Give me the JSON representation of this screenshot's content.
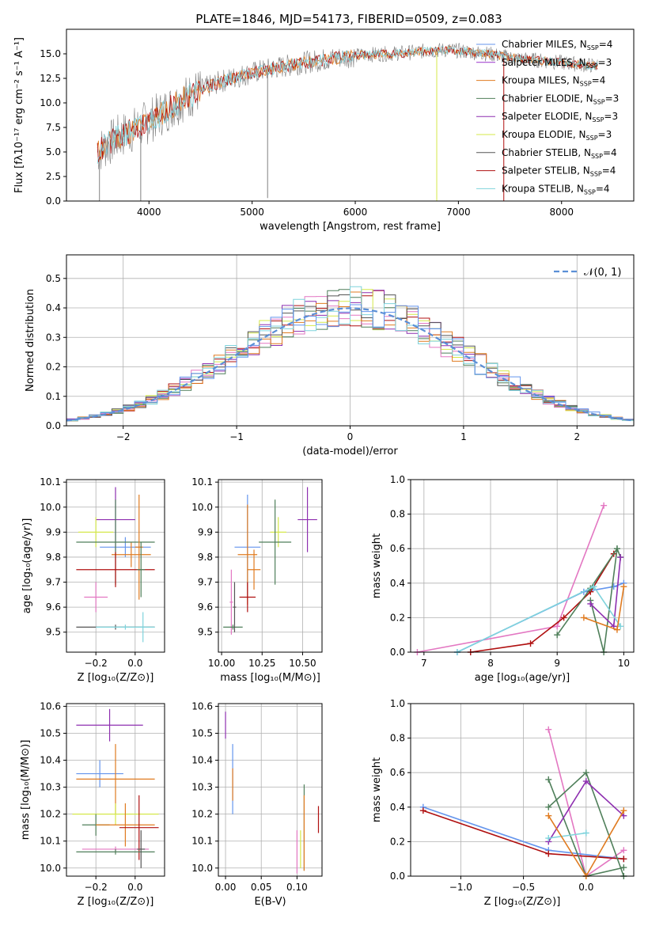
{
  "colors": {
    "chabrier_miles": "#6495ed",
    "salpeter_miles": "#9932cc",
    "kroupa_miles": "#e07b20",
    "chabrier_elodie": "#4f7f5a",
    "salpeter_elodie": "#8e2fb0",
    "kroupa_elodie": "#d4e84a",
    "chabrier_stelib": "#555555",
    "salpeter_stelib": "#b01010",
    "kroupa_stelib": "#7fd3dc",
    "pink": "#e377c2",
    "gauss": "#5b8fd6",
    "spectrum_data": "#808080"
  },
  "chart_data": [
    {
      "id": "spectrum",
      "type": "line",
      "title": "PLATE=1846, MJD=54173, FIBERID=0509, z=0.083",
      "xlabel": "wavelength [Angstrom, rest frame]",
      "ylabel": "Flux [fλ10⁻¹⁷ erg cm⁻² s⁻¹ A⁻¹]",
      "xlim": [
        3200,
        8700
      ],
      "ylim": [
        0,
        17.5
      ],
      "xticks": [
        "4000",
        "5000",
        "6000",
        "7000",
        "8000"
      ],
      "yticks": [
        "0.0",
        "2.5",
        "5.0",
        "7.5",
        "10.0",
        "12.5",
        "15.0"
      ],
      "legend_position": "right",
      "series": [
        {
          "name": "Chabrier MILES, N_SSP=4"
        },
        {
          "name": "Salpeter MILES, N_SSP=3"
        },
        {
          "name": "Kroupa MILES, N_SSP=4"
        },
        {
          "name": "Chabrier ELODIE, N_SSP=3"
        },
        {
          "name": "Salpeter ELODIE, N_SSP=3"
        },
        {
          "name": "Kroupa ELODIE, N_SSP=3"
        },
        {
          "name": "Chabrier STELIB, N_SSP=4"
        },
        {
          "name": "Salpeter STELIB, N_SSP=4"
        },
        {
          "name": "Kroupa STELIB, N_SSP=4"
        }
      ],
      "continuum_x": [
        3500,
        3700,
        3900,
        4100,
        4300,
        4500,
        4700,
        4900,
        5100,
        5300,
        5500,
        5700,
        5900,
        6100,
        6300,
        6500,
        6700,
        6900,
        7100,
        7300,
        7500,
        7700,
        7900,
        8100,
        8300
      ],
      "continuum_y": [
        5.0,
        6.5,
        7.5,
        8.8,
        10.2,
        11.3,
        12.2,
        12.8,
        13.3,
        13.7,
        14.1,
        14.4,
        14.7,
        14.9,
        15.0,
        15.1,
        15.3,
        15.4,
        15.2,
        15.0,
        14.6,
        14.4,
        14.2,
        14.0,
        13.8
      ]
    },
    {
      "id": "residuals",
      "type": "bar",
      "xlabel": "(data-model)/error",
      "ylabel": "Normed distribution",
      "xlim": [
        -2.5,
        2.5
      ],
      "ylim": [
        0,
        0.58
      ],
      "xticks": [
        "−2",
        "−1",
        "0",
        "1",
        "2"
      ],
      "yticks": [
        "0.0",
        "0.1",
        "0.2",
        "0.3",
        "0.4",
        "0.5"
      ],
      "legend_position": "top-right",
      "gauss_label": "𝒩(0, 1)",
      "bin_edges_start": -2.5,
      "bin_width": 0.1,
      "bin_counts": 50
    },
    {
      "id": "age-vs-Z",
      "type": "scatter",
      "xlabel": "Z [log₁₀(Z/Z⊙)]",
      "ylabel": "age  [log₁₀(age/yr)]",
      "xlim": [
        -0.35,
        0.15
      ],
      "ylim": [
        9.42,
        10.11
      ],
      "xticks": [
        "−0.2",
        "0.0"
      ],
      "yticks": [
        "9.5",
        "9.6",
        "9.7",
        "9.8",
        "9.9",
        "10.0",
        "10.1"
      ],
      "points": [
        {
          "x": -0.1,
          "y": 9.95,
          "xerr": 0.1,
          "yerr": 0.13
        },
        {
          "x": -0.05,
          "y": 9.84,
          "xerr": 0.13,
          "yerr": 0.04
        },
        {
          "x": -0.02,
          "y": 9.81,
          "xerr": 0.1,
          "yerr": 0.05
        },
        {
          "x": -0.2,
          "y": 9.9,
          "xerr": 0.09,
          "yerr": 0.06
        },
        {
          "x": -0.1,
          "y": 9.86,
          "xerr": 0.2,
          "yerr": 0.17
        },
        {
          "x": 0.02,
          "y": 9.84,
          "xerr": 0.02,
          "yerr": 0.21
        },
        {
          "x": -0.1,
          "y": 9.75,
          "xerr": 0.2,
          "yerr": 0.07
        },
        {
          "x": -0.2,
          "y": 9.64,
          "xerr": 0.06,
          "yerr": 0.06
        },
        {
          "x": 0.03,
          "y": 9.75,
          "xerr": 0.02,
          "yerr": 0.11
        },
        {
          "x": -0.1,
          "y": 9.52,
          "xerr": 0.2,
          "yerr": 0.01
        },
        {
          "x": -0.05,
          "y": 9.52,
          "xerr": 0.15,
          "yerr": 0.01
        },
        {
          "x": 0.04,
          "y": 9.52,
          "xerr": 0.02,
          "yerr": 0.06
        }
      ]
    },
    {
      "id": "age-vs-mass",
      "type": "scatter",
      "xlabel": "mass [log₁₀(M/M⊙)]",
      "ylabel": "",
      "xlim": [
        9.98,
        10.62
      ],
      "ylim": [
        9.42,
        10.11
      ],
      "xticks": [
        "10.00",
        "10.25",
        "10.50"
      ],
      "yticks": [
        "9.5",
        "9.6",
        "9.7",
        "9.8",
        "9.9",
        "10.0",
        "10.1"
      ],
      "points": [
        {
          "x": 10.53,
          "y": 9.95,
          "xerr": 0.06,
          "yerr": 0.13
        },
        {
          "x": 10.16,
          "y": 9.84,
          "xerr": 0.08,
          "yerr": 0.21
        },
        {
          "x": 10.16,
          "y": 9.81,
          "xerr": 0.06,
          "yerr": 0.2
        },
        {
          "x": 10.35,
          "y": 9.9,
          "xerr": 0.05,
          "yerr": 0.06
        },
        {
          "x": 10.33,
          "y": 9.86,
          "xerr": 0.1,
          "yerr": 0.17
        },
        {
          "x": 10.2,
          "y": 9.75,
          "xerr": 0.04,
          "yerr": 0.08
        },
        {
          "x": 10.16,
          "y": 9.64,
          "xerr": 0.05,
          "yerr": 0.06
        },
        {
          "x": 10.06,
          "y": 9.62,
          "xerr": 0.01,
          "yerr": 0.13
        },
        {
          "x": 10.07,
          "y": 9.52,
          "xerr": 0.06,
          "yerr": 0.01
        },
        {
          "x": 10.08,
          "y": 9.6,
          "xerr": 0.01,
          "yerr": 0.1
        }
      ]
    },
    {
      "id": "massweight-vs-age",
      "type": "line",
      "xlabel": "age  [log₁₀(age/yr)]",
      "ylabel": "mass weight",
      "xlim": [
        6.8,
        10.15
      ],
      "ylim": [
        0,
        1.0
      ],
      "xticks": [
        "7",
        "8",
        "9",
        "10"
      ],
      "yticks": [
        "0.0",
        "0.2",
        "0.4",
        "0.6",
        "0.8",
        "1.0"
      ],
      "series": [
        {
          "x": [
            6.9,
            9.0,
            9.7
          ],
          "y": [
            0.0,
            0.15,
            0.85
          ]
        },
        {
          "x": [
            7.5,
            9.4,
            9.85,
            10.0
          ],
          "y": [
            0.0,
            0.35,
            0.38,
            0.4
          ]
        },
        {
          "x": [
            7.7,
            8.6,
            9.1,
            9.5,
            9.85
          ],
          "y": [
            0.0,
            0.05,
            0.2,
            0.35,
            0.57
          ]
        },
        {
          "x": [
            9.0,
            9.5,
            9.9,
            9.95
          ],
          "y": [
            0.1,
            0.37,
            0.6,
            0.55
          ]
        },
        {
          "x": [
            9.5,
            9.7,
            9.9
          ],
          "y": [
            0.3,
            0.0,
            0.6
          ]
        },
        {
          "x": [
            9.5,
            9.85,
            9.95
          ],
          "y": [
            0.28,
            0.15,
            0.55
          ]
        },
        {
          "x": [
            7.5,
            9.55,
            9.95
          ],
          "y": [
            0.0,
            0.38,
            0.15
          ]
        },
        {
          "x": [
            9.4,
            9.9,
            10.0
          ],
          "y": [
            0.2,
            0.13,
            0.38
          ]
        }
      ]
    },
    {
      "id": "mass-vs-Z",
      "type": "scatter",
      "xlabel": "Z [log₁₀(Z/Z⊙)]",
      "ylabel": "mass [log₁₀(M/M⊙)]",
      "xlim": [
        -0.35,
        0.15
      ],
      "ylim": [
        9.97,
        10.61
      ],
      "xticks": [
        "−0.2",
        "0.0"
      ],
      "yticks": [
        "10.0",
        "10.1",
        "10.2",
        "10.3",
        "10.4",
        "10.5",
        "10.6"
      ],
      "points": [
        {
          "x": -0.13,
          "y": 10.53,
          "xerr": 0.17,
          "yerr": 0.06
        },
        {
          "x": -0.18,
          "y": 10.35,
          "xerr": 0.12,
          "yerr": 0.05
        },
        {
          "x": -0.1,
          "y": 10.33,
          "xerr": 0.2,
          "yerr": 0.13
        },
        {
          "x": -0.1,
          "y": 10.2,
          "xerr": 0.22,
          "yerr": 0.04
        },
        {
          "x": -0.2,
          "y": 10.16,
          "xerr": 0.07,
          "yerr": 0.04
        },
        {
          "x": -0.05,
          "y": 10.16,
          "xerr": 0.15,
          "yerr": 0.08
        },
        {
          "x": 0.02,
          "y": 10.15,
          "xerr": 0.1,
          "yerr": 0.12
        },
        {
          "x": -0.1,
          "y": 10.07,
          "xerr": 0.17,
          "yerr": 0.01
        },
        {
          "x": -0.1,
          "y": 10.06,
          "xerr": 0.2,
          "yerr": 0.01
        },
        {
          "x": 0.03,
          "y": 10.07,
          "xerr": 0.02,
          "yerr": 0.07
        }
      ]
    },
    {
      "id": "mass-vs-EBV",
      "type": "scatter",
      "xlabel": "E(B-V)",
      "ylabel": "",
      "xlim": [
        -0.01,
        0.135
      ],
      "ylim": [
        9.97,
        10.61
      ],
      "xticks": [
        "0.00",
        "0.05",
        "0.10"
      ],
      "yticks": [
        "10.0",
        "10.1",
        "10.2",
        "10.3",
        "10.4",
        "10.5",
        "10.6"
      ],
      "points": [
        {
          "x": 0.0,
          "y": 10.53,
          "xerr": 0.0,
          "yerr": 0.05
        },
        {
          "x": 0.01,
          "y": 10.33,
          "xerr": 0.0,
          "yerr": 0.13
        },
        {
          "x": 0.01,
          "y": 10.31,
          "xerr": 0.0,
          "yerr": 0.06
        },
        {
          "x": 0.105,
          "y": 10.07,
          "xerr": 0.0,
          "yerr": 0.07
        },
        {
          "x": 0.11,
          "y": 10.15,
          "xerr": 0.0,
          "yerr": 0.16
        },
        {
          "x": 0.11,
          "y": 10.13,
          "xerr": 0.0,
          "yerr": 0.14
        },
        {
          "x": 0.13,
          "y": 10.18,
          "xerr": 0.0,
          "yerr": 0.05
        },
        {
          "x": 0.1,
          "y": 10.06,
          "xerr": 0.0,
          "yerr": 0.08
        }
      ]
    },
    {
      "id": "massweight-vs-Z",
      "type": "line",
      "xlabel": "Z [log₁₀(Z/Z⊙)]",
      "ylabel": "mass weight",
      "xlim": [
        -1.4,
        0.38
      ],
      "ylim": [
        0,
        1.0
      ],
      "xticks": [
        "−1.0",
        "−0.5",
        "0.0"
      ],
      "yticks": [
        "0.0",
        "0.2",
        "0.4",
        "0.6",
        "0.8",
        "1.0"
      ],
      "series": [
        {
          "x": [
            -0.3,
            0.0,
            0.3
          ],
          "y": [
            0.85,
            0.0,
            0.15
          ]
        },
        {
          "x": [
            -1.3,
            -0.3,
            0.3
          ],
          "y": [
            0.4,
            0.15,
            0.1
          ]
        },
        {
          "x": [
            -1.3,
            -0.3,
            0.3
          ],
          "y": [
            0.38,
            0.13,
            0.1
          ]
        },
        {
          "x": [
            -0.3,
            0.0,
            0.3
          ],
          "y": [
            0.56,
            0.0,
            0.05
          ]
        },
        {
          "x": [
            -0.3,
            0.0,
            0.3
          ],
          "y": [
            0.4,
            0.6,
            0.0
          ]
        },
        {
          "x": [
            -0.3,
            0.0,
            0.3
          ],
          "y": [
            0.2,
            0.55,
            0.35
          ]
        },
        {
          "x": [
            -0.3,
            0.0
          ],
          "y": [
            0.22,
            0.25
          ]
        },
        {
          "x": [
            -0.3,
            0.0,
            0.3
          ],
          "y": [
            0.35,
            0.0,
            0.38
          ]
        }
      ]
    }
  ]
}
